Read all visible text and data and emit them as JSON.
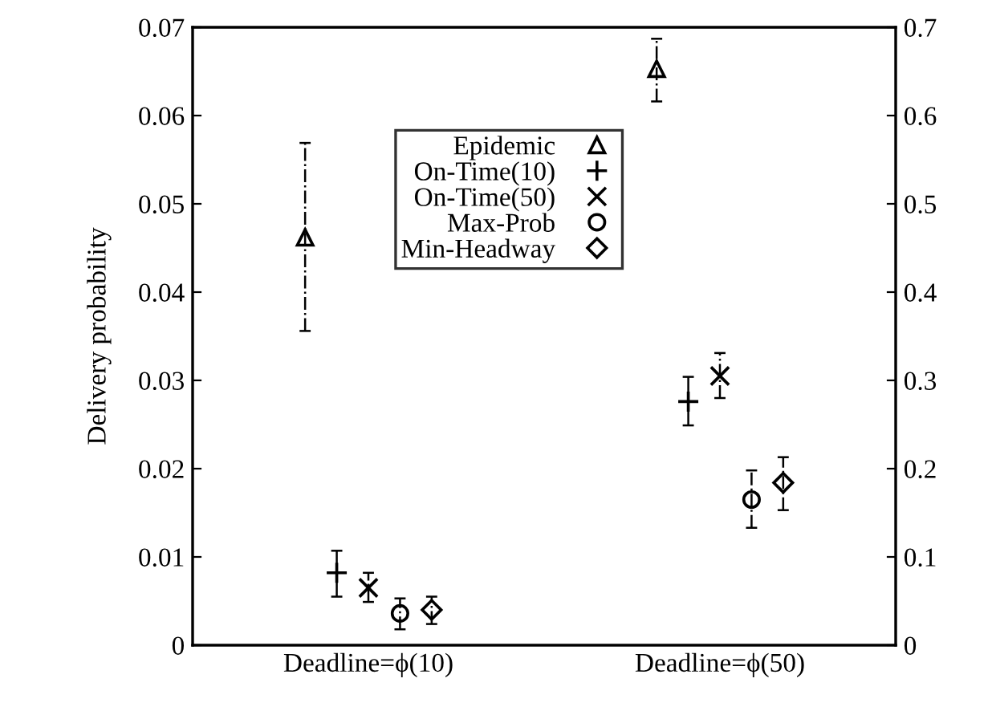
{
  "chart_data": {
    "type": "scatter",
    "ylabel": "Delivery probability",
    "categories": [
      "Deadline=ϕ(10)",
      "Deadline=ϕ(50)"
    ],
    "ylim": [
      0,
      0.07
    ],
    "yticks": [
      0,
      0.01,
      0.02,
      0.03,
      0.04,
      0.05,
      0.06,
      0.07
    ],
    "y2lim": [
      0,
      0.7
    ],
    "y2ticks": [
      0,
      0.1,
      0.2,
      0.3,
      0.4,
      0.5,
      0.6,
      0.7
    ],
    "grid": false,
    "legend": "top",
    "series": [
      {
        "name": "Epidemic",
        "color": "#000000",
        "marker": "triangle",
        "line_style": "dotted",
        "values": [
          0.0462,
          0.0653
        ],
        "errors": [
          [
            0.0356,
            0.0569
          ],
          [
            0.0616,
            0.0687
          ]
        ]
      },
      {
        "name": "On-Time(10)",
        "color": "#000000",
        "marker": "plus",
        "line_style": "solid",
        "values": [
          0.0082,
          0.0276
        ],
        "errors": [
          [
            0.0055,
            0.0107
          ],
          [
            0.0249,
            0.0304
          ]
        ]
      },
      {
        "name": "On-Time(50)",
        "color": "#000000",
        "marker": "cross",
        "line_style": "dotted",
        "values": [
          0.0065,
          0.0305
        ],
        "errors": [
          [
            0.0049,
            0.0082
          ],
          [
            0.028,
            0.0331
          ]
        ]
      },
      {
        "name": "Max-Prob",
        "color": "#000000",
        "marker": "circle",
        "line_style": "dotted",
        "values": [
          0.0036,
          0.0165
        ],
        "errors": [
          [
            0.0018,
            0.0053
          ],
          [
            0.0133,
            0.0198
          ]
        ]
      },
      {
        "name": "Min-Headway",
        "color": "#000000",
        "marker": "diamond",
        "line_style": "dotted",
        "values": [
          0.004,
          0.0184
        ],
        "errors": [
          [
            0.0024,
            0.0055
          ],
          [
            0.0153,
            0.0213
          ]
        ]
      }
    ]
  }
}
